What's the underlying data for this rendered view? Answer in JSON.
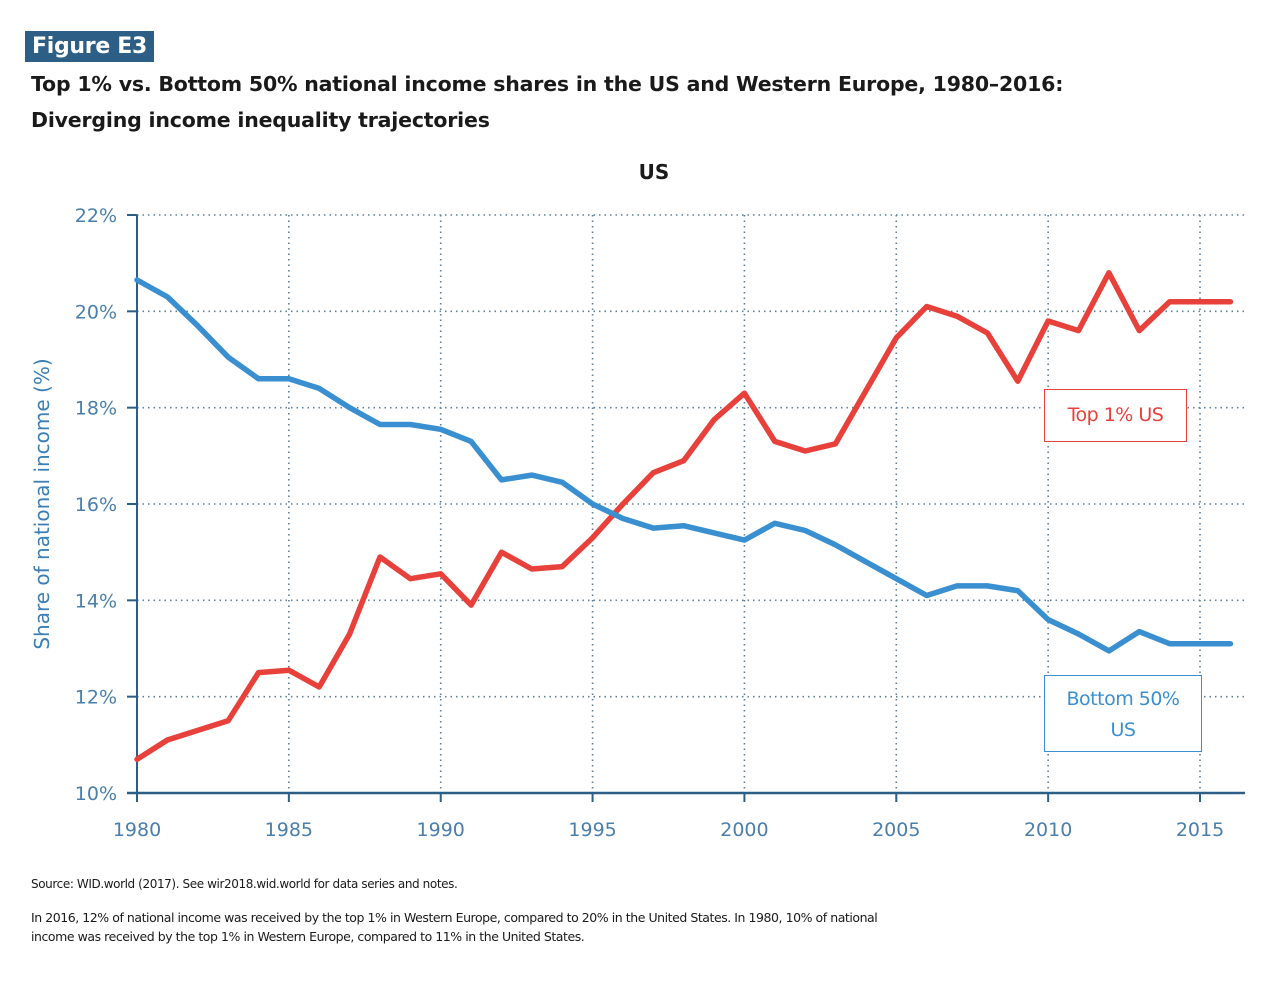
{
  "figure": {
    "badge": "Figure E3",
    "title_line1": "Top 1% vs. Bottom 50% national income shares in the US and Western Europe, 1980–2016:",
    "title_line2": "Diverging income inequality trajectories",
    "source": "Source:  WID.world (2017). See wir2018.wid.world for data series and notes.",
    "note_line1": "In 2016, 12% of national income was received by the top 1% in Western Europe, compared to 20% in the United States. In 1980, 10% of national",
    "note_line2": "income was received by the top 1% in Western Europe, compared to 11% in the United States.",
    "badge_color": "#2d5f86"
  },
  "chart_data": {
    "type": "line",
    "title": "US",
    "xlabel": "",
    "ylabel": "Share of national income (%)",
    "xlim": [
      1980,
      2016.5
    ],
    "ylim": [
      10,
      22
    ],
    "grid": true,
    "x_ticks": [
      1980,
      1985,
      1990,
      1995,
      2000,
      2005,
      2010,
      2015
    ],
    "x_tick_labels": [
      "1980",
      "1985",
      "1990",
      "1995",
      "2000",
      "2005",
      "2010",
      "2015"
    ],
    "y_ticks": [
      10,
      12,
      14,
      16,
      18,
      20,
      22
    ],
    "y_tick_labels": [
      "10%",
      "12%",
      "14%",
      "16%",
      "18%",
      "20%",
      "22%"
    ],
    "x": [
      1980,
      1981,
      1982,
      1983,
      1984,
      1985,
      1986,
      1987,
      1988,
      1989,
      1990,
      1991,
      1992,
      1993,
      1994,
      1995,
      1996,
      1997,
      1998,
      1999,
      2000,
      2001,
      2002,
      2003,
      2004,
      2005,
      2006,
      2007,
      2008,
      2009,
      2010,
      2011,
      2012,
      2013,
      2014,
      2015,
      2016
    ],
    "series": [
      {
        "name": "Top 1% US",
        "label": "Top 1% US",
        "color": "#e8403a",
        "values": [
          10.7,
          11.1,
          11.3,
          11.5,
          12.5,
          12.55,
          12.2,
          13.3,
          14.9,
          14.45,
          14.55,
          13.9,
          15.0,
          14.65,
          14.7,
          15.3,
          16.0,
          16.65,
          16.9,
          17.75,
          18.3,
          17.3,
          17.1,
          17.25,
          18.35,
          19.45,
          20.1,
          19.9,
          19.55,
          18.55,
          19.8,
          19.6,
          20.8,
          19.6,
          20.2,
          20.2,
          20.2
        ]
      },
      {
        "name": "Bottom 50% US",
        "label_line1": "Bottom 50%",
        "label_line2": "US",
        "color": "#3a8fd0",
        "values": [
          20.65,
          20.3,
          19.7,
          19.05,
          18.6,
          18.6,
          18.4,
          18.0,
          17.65,
          17.65,
          17.55,
          17.3,
          16.5,
          16.6,
          16.45,
          16.0,
          15.7,
          15.5,
          15.55,
          15.4,
          15.25,
          15.6,
          15.45,
          15.15,
          14.8,
          14.45,
          14.1,
          14.3,
          14.3,
          14.2,
          13.6,
          13.3,
          12.95,
          13.35,
          13.1,
          13.1,
          13.1
        ]
      }
    ],
    "legend": "inline-labels-right"
  }
}
